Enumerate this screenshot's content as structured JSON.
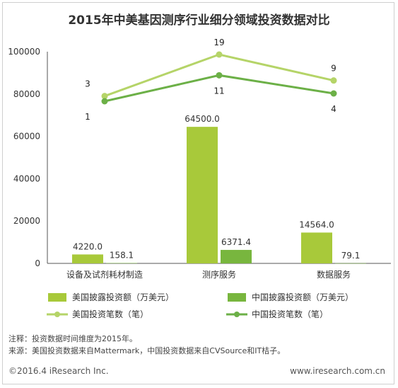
{
  "title": "2015年中美基因测序行业细分领域投资数据对比",
  "chart_data": {
    "type": "bar",
    "categories": [
      "设备及试剂耗材制造",
      "测序服务",
      "数据服务"
    ],
    "yticks": [
      "0",
      "20000",
      "40000",
      "60000",
      "80000",
      "100000"
    ],
    "ylim": [
      0,
      100000
    ],
    "series": [
      {
        "name": "美国披露投资额（万美元）",
        "type": "bar",
        "values": [
          4220.0,
          64500.0,
          14564.0
        ],
        "labels": [
          "4220.0",
          "64500.0",
          "14564.0"
        ],
        "color": "#a8c93a"
      },
      {
        "name": "中国披露投资额（万美元）",
        "type": "bar",
        "values": [
          158.1,
          6371.4,
          79.1
        ],
        "labels": [
          "158.1",
          "6371.4",
          "79.1"
        ],
        "color": "#78b63e"
      },
      {
        "name": "美国投资笔数（笔）",
        "type": "line",
        "values": [
          3,
          19,
          9
        ],
        "labels": [
          "3",
          "19",
          "9"
        ],
        "color": "#b5d468"
      },
      {
        "name": "中国投资笔数（笔）",
        "type": "line",
        "values": [
          1,
          11,
          4
        ],
        "labels": [
          "1",
          "11",
          "4"
        ],
        "color": "#6cb047"
      }
    ]
  },
  "notes": {
    "line1": "注释：投资数据时间维度为2015年。",
    "line2": "来源：美国投资数据来自Mattermark，中国投资数据来自CVSource和IT桔子。"
  },
  "footer": {
    "copyright": "©2016.4 iResearch Inc.",
    "website": "www.iresearch.com.cn"
  }
}
